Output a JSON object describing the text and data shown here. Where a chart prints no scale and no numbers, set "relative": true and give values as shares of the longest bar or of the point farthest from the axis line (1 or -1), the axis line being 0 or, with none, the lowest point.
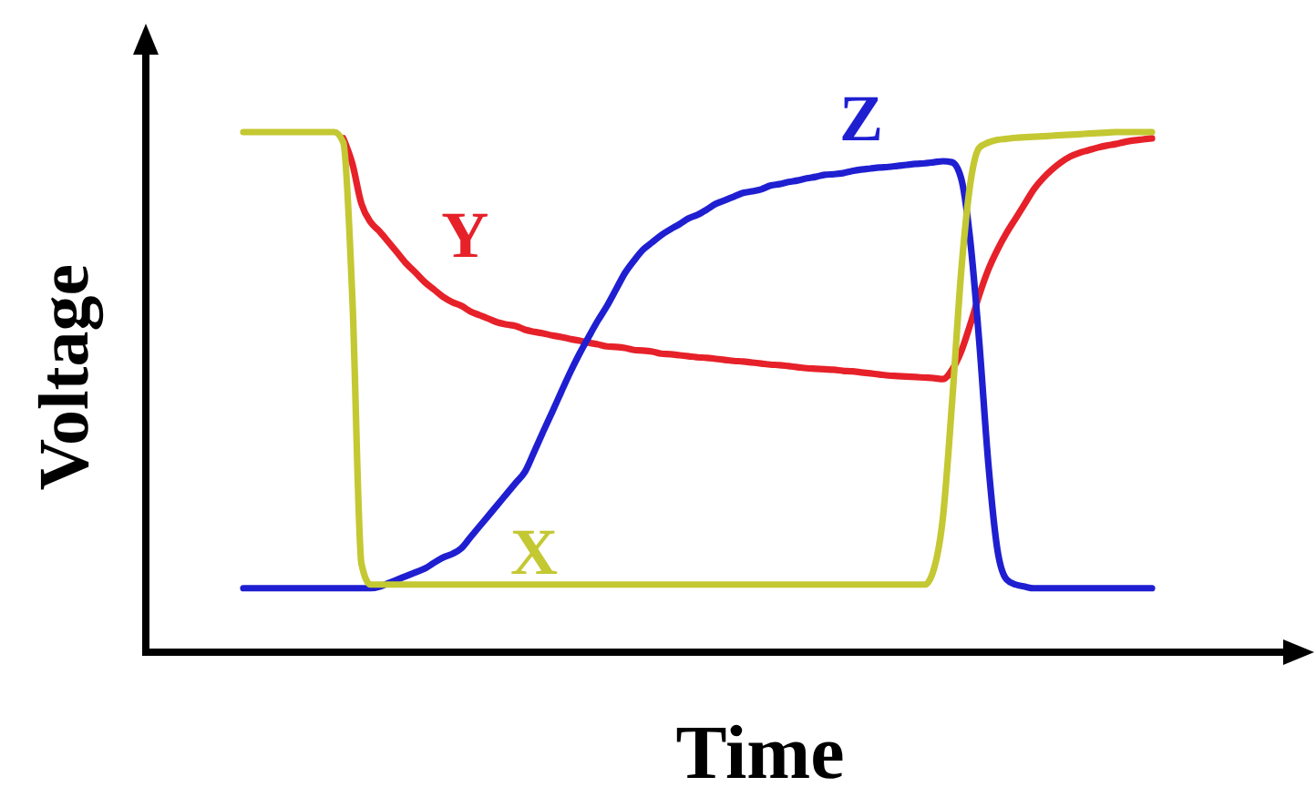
{
  "chart_data": {
    "type": "line",
    "relative": true,
    "xlabel": "Time",
    "ylabel": "Voltage",
    "categories": [
      null,
      null,
      null,
      null,
      null,
      null,
      null,
      null,
      null,
      null,
      null,
      null,
      null,
      null,
      null,
      null,
      null,
      null,
      null,
      null,
      null,
      null,
      null,
      null,
      null,
      null,
      null,
      null,
      null,
      null,
      null,
      null,
      null,
      null,
      null,
      null,
      null,
      null,
      null,
      null,
      null,
      null,
      null,
      null,
      null,
      null,
      null,
      null,
      null,
      null,
      null,
      null,
      null,
      null,
      null,
      null,
      null,
      null,
      null,
      null,
      null,
      null,
      null,
      null,
      null,
      null,
      null,
      null,
      null,
      null,
      null,
      null,
      null,
      null,
      null,
      null,
      null,
      null,
      null,
      null,
      null,
      null,
      null,
      null,
      null,
      null,
      null,
      null,
      null,
      null,
      null,
      null,
      null,
      null,
      null,
      null,
      null,
      null,
      null,
      null,
      null
    ],
    "series": [
      {
        "name": "Y",
        "color": "#e62129",
        "values": [
          null,
          null,
          null,
          null,
          null,
          null,
          null,
          null,
          null,
          null,
          null,
          0.988,
          0.939,
          0.862,
          0.827,
          0.809,
          0.788,
          0.767,
          0.746,
          0.729,
          0.711,
          0.697,
          0.683,
          0.673,
          0.666,
          0.655,
          0.648,
          0.641,
          0.634,
          0.63,
          0.627,
          0.62,
          0.616,
          0.613,
          0.609,
          0.606,
          0.602,
          0.599,
          0.595,
          0.592,
          0.588,
          0.587,
          0.585,
          0.581,
          0.58,
          0.578,
          0.574,
          0.573,
          0.571,
          0.569,
          0.567,
          0.566,
          0.564,
          0.562,
          0.56,
          0.559,
          0.557,
          0.555,
          0.553,
          0.552,
          0.55,
          0.548,
          0.546,
          0.545,
          0.544,
          0.543,
          0.541,
          0.54,
          0.538,
          0.536,
          0.534,
          0.532,
          0.531,
          0.53,
          0.529,
          0.528,
          0.527,
          0.525,
          0.543,
          0.578,
          0.63,
          0.687,
          0.736,
          0.774,
          0.806,
          0.834,
          0.862,
          0.89,
          0.911,
          0.928,
          0.942,
          0.953,
          0.96,
          0.965,
          0.97,
          0.974,
          0.977,
          0.981,
          0.984,
          0.986,
          0.988
        ]
      },
      {
        "name": "Z",
        "color": "#1f1fd1",
        "values": [
          0.123,
          0.123,
          0.123,
          0.123,
          0.123,
          0.123,
          0.123,
          0.123,
          0.123,
          0.123,
          0.123,
          0.123,
          0.123,
          0.123,
          0.123,
          0.126,
          0.133,
          0.14,
          0.147,
          0.154,
          0.161,
          0.172,
          0.182,
          0.189,
          0.2,
          0.221,
          0.242,
          0.263,
          0.284,
          0.305,
          0.326,
          0.347,
          0.385,
          0.424,
          0.462,
          0.501,
          0.539,
          0.574,
          0.606,
          0.637,
          0.665,
          0.697,
          0.729,
          0.753,
          0.774,
          0.788,
          0.802,
          0.813,
          0.823,
          0.834,
          0.841,
          0.851,
          0.862,
          0.869,
          0.876,
          0.883,
          0.886,
          0.89,
          0.897,
          0.9,
          0.904,
          0.907,
          0.911,
          0.914,
          0.918,
          0.919,
          0.921,
          0.925,
          0.928,
          0.93,
          0.932,
          0.933,
          0.935,
          0.937,
          0.939,
          0.94,
          0.942,
          0.944,
          0.942,
          0.911,
          0.792,
          0.595,
          0.361,
          0.196,
          0.14,
          0.13,
          0.126,
          0.123,
          0.123,
          0.123,
          0.123,
          0.123,
          0.123,
          0.123,
          0.123,
          0.123,
          0.123,
          0.123,
          0.123,
          0.123,
          0.123
        ]
      },
      {
        "name": "X",
        "color": "#c4c832",
        "values": [
          1,
          1,
          1,
          1,
          1,
          1,
          1,
          1,
          1,
          1,
          1,
          0.98,
          0.68,
          0.17,
          0.13,
          0.13,
          0.13,
          0.13,
          0.13,
          0.13,
          0.13,
          0.13,
          0.13,
          0.13,
          0.13,
          0.13,
          0.13,
          0.13,
          0.13,
          0.13,
          0.13,
          0.13,
          0.13,
          0.13,
          0.13,
          0.13,
          0.13,
          0.13,
          0.13,
          0.13,
          0.13,
          0.13,
          0.13,
          0.13,
          0.13,
          0.13,
          0.13,
          0.13,
          0.13,
          0.13,
          0.13,
          0.13,
          0.13,
          0.13,
          0.13,
          0.13,
          0.13,
          0.13,
          0.13,
          0.13,
          0.13,
          0.13,
          0.13,
          0.13,
          0.13,
          0.13,
          0.13,
          0.13,
          0.13,
          0.13,
          0.13,
          0.13,
          0.13,
          0.13,
          0.13,
          0.13,
          0.16,
          0.26,
          0.48,
          0.73,
          0.9,
          0.97,
          0.98,
          0.985,
          0.987,
          0.989,
          0.99,
          0.991,
          0.992,
          0.993,
          0.994,
          0.995,
          0.996,
          0.997,
          0.998,
          0.999,
          1,
          1,
          1,
          1,
          1
        ]
      }
    ]
  }
}
